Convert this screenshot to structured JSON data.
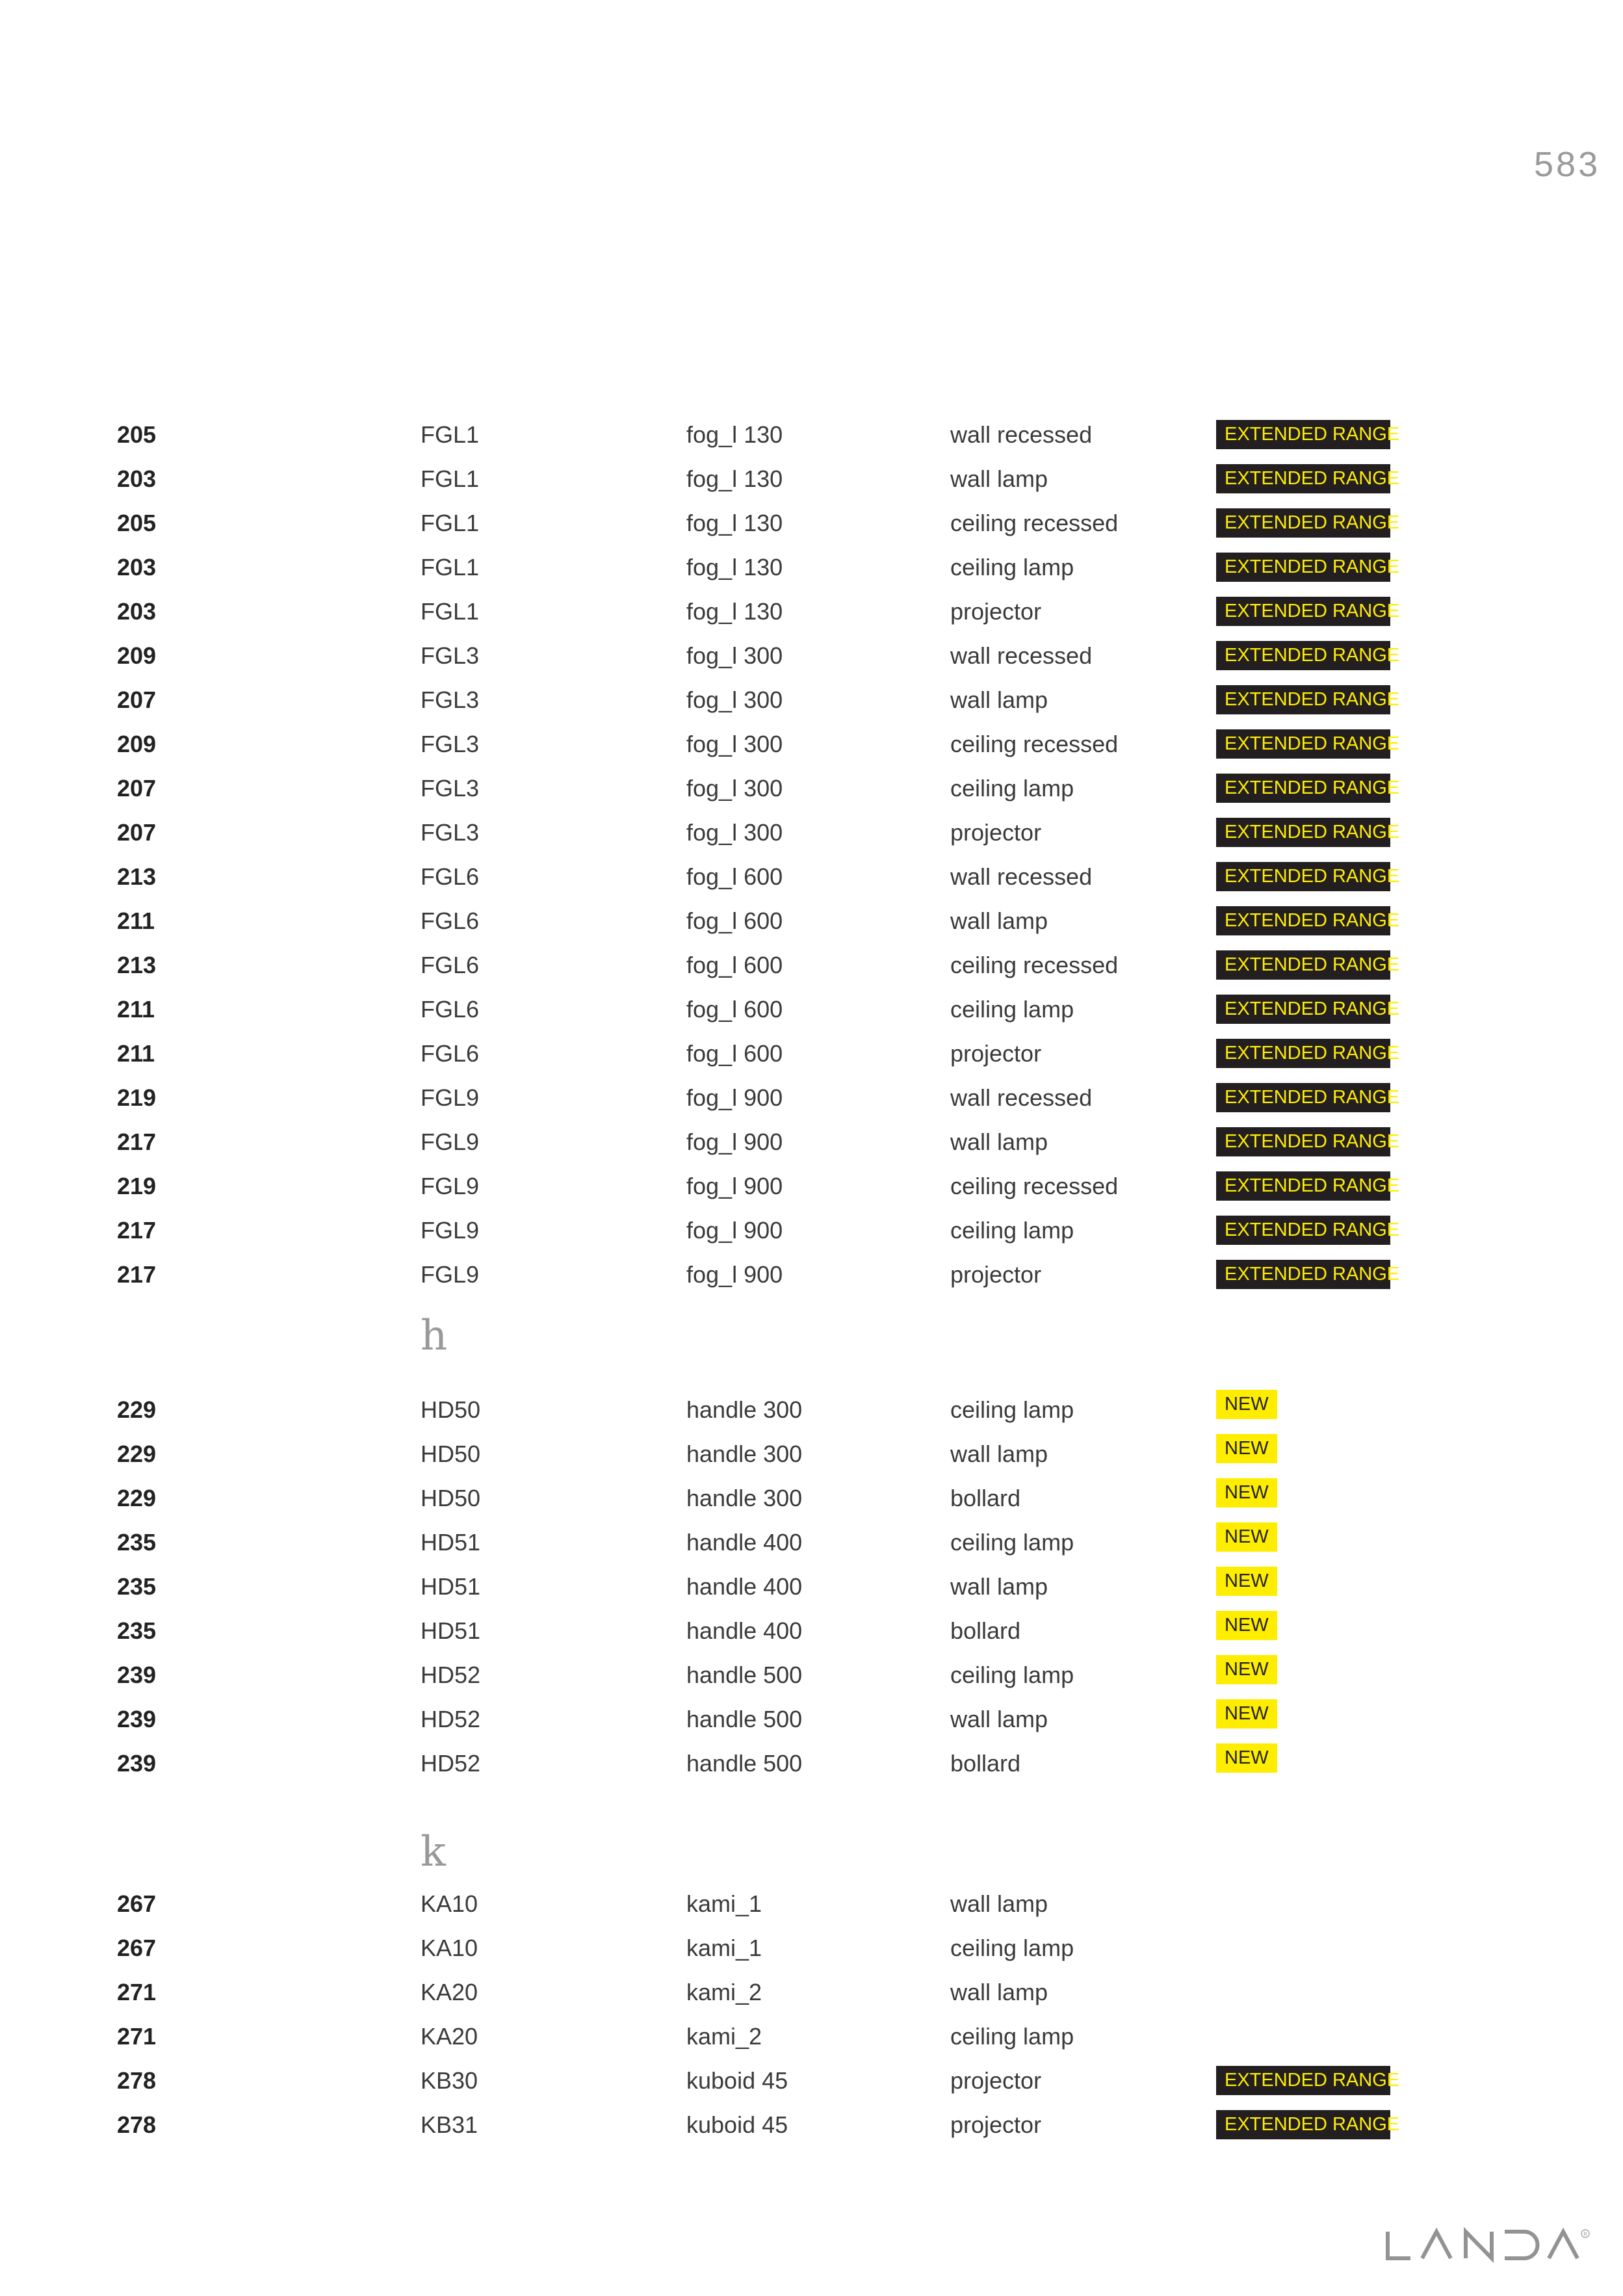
{
  "page_number": "583",
  "colors": {
    "badge_dark": "#231f20",
    "badge_yellow": "#ffed00",
    "logo_gray": "#939393"
  },
  "logo": {
    "text": "LANDA"
  },
  "sections": [
    {
      "letter": "",
      "rows": [
        [
          "205",
          "FGL1",
          "fog_l 130",
          "wall recessed",
          "EXTENDED RANGE"
        ],
        [
          "203",
          "FGL1",
          "fog_l 130",
          "wall lamp",
          "EXTENDED RANGE"
        ],
        [
          "205",
          "FGL1",
          "fog_l 130",
          "ceiling recessed",
          "EXTENDED RANGE"
        ],
        [
          "203",
          "FGL1",
          "fog_l 130",
          "ceiling lamp",
          "EXTENDED RANGE"
        ],
        [
          "203",
          "FGL1",
          "fog_l 130",
          "projector",
          "EXTENDED RANGE"
        ],
        [
          "209",
          "FGL3",
          "fog_l 300",
          "wall recessed",
          "EXTENDED RANGE"
        ],
        [
          "207",
          "FGL3",
          "fog_l 300",
          "wall lamp",
          "EXTENDED RANGE"
        ],
        [
          "209",
          "FGL3",
          "fog_l 300",
          "ceiling recessed",
          "EXTENDED RANGE"
        ],
        [
          "207",
          "FGL3",
          "fog_l 300",
          "ceiling lamp",
          "EXTENDED RANGE"
        ],
        [
          "207",
          "FGL3",
          "fog_l 300",
          "projector",
          "EXTENDED RANGE"
        ],
        [
          "213",
          "FGL6",
          "fog_l 600",
          "wall recessed",
          "EXTENDED RANGE"
        ],
        [
          "211",
          "FGL6",
          "fog_l 600",
          "wall lamp",
          "EXTENDED RANGE"
        ],
        [
          "213",
          "FGL6",
          "fog_l 600",
          "ceiling recessed",
          "EXTENDED RANGE"
        ],
        [
          "211",
          "FGL6",
          "fog_l 600",
          "ceiling lamp",
          "EXTENDED RANGE"
        ],
        [
          "211",
          "FGL6",
          "fog_l 600",
          "projector",
          "EXTENDED RANGE"
        ],
        [
          "219",
          "FGL9",
          "fog_l 900",
          "wall recessed",
          "EXTENDED RANGE"
        ],
        [
          "217",
          "FGL9",
          "fog_l 900",
          "wall lamp",
          "EXTENDED RANGE"
        ],
        [
          "219",
          "FGL9",
          "fog_l 900",
          "ceiling recessed",
          "EXTENDED RANGE"
        ],
        [
          "217",
          "FGL9",
          "fog_l 900",
          "ceiling lamp",
          "EXTENDED RANGE"
        ],
        [
          "217",
          "FGL9",
          "fog_l 900",
          "projector",
          "EXTENDED RANGE"
        ]
      ]
    },
    {
      "letter": "h",
      "rows": [
        [
          "229",
          "HD50",
          "handle 300",
          "ceiling lamp",
          "NEW"
        ],
        [
          "229",
          "HD50",
          "handle 300",
          "wall lamp",
          "NEW"
        ],
        [
          "229",
          "HD50",
          "handle 300",
          "bollard",
          "NEW"
        ],
        [
          "235",
          "HD51",
          "handle 400",
          "ceiling lamp",
          "NEW"
        ],
        [
          "235",
          "HD51",
          "handle 400",
          "wall lamp",
          "NEW"
        ],
        [
          "235",
          "HD51",
          "handle 400",
          "bollard",
          "NEW"
        ],
        [
          "239",
          "HD52",
          "handle 500",
          "ceiling lamp",
          "NEW"
        ],
        [
          "239",
          "HD52",
          "handle 500",
          "wall lamp",
          "NEW"
        ],
        [
          "239",
          "HD52",
          "handle 500",
          "bollard",
          "NEW"
        ]
      ]
    },
    {
      "letter": "k",
      "rows": [
        [
          "267",
          "KA10",
          "kami_1",
          "wall lamp",
          ""
        ],
        [
          "267",
          "KA10",
          "kami_1",
          "ceiling lamp",
          ""
        ],
        [
          "271",
          "KA20",
          "kami_2",
          "wall lamp",
          ""
        ],
        [
          "271",
          "KA20",
          "kami_2",
          "ceiling lamp",
          ""
        ],
        [
          "278",
          "KB30",
          "kuboid 45",
          "projector",
          "EXTENDED RANGE"
        ],
        [
          "278",
          "KB31",
          "kuboid 45",
          "projector",
          "EXTENDED RANGE"
        ]
      ]
    }
  ]
}
